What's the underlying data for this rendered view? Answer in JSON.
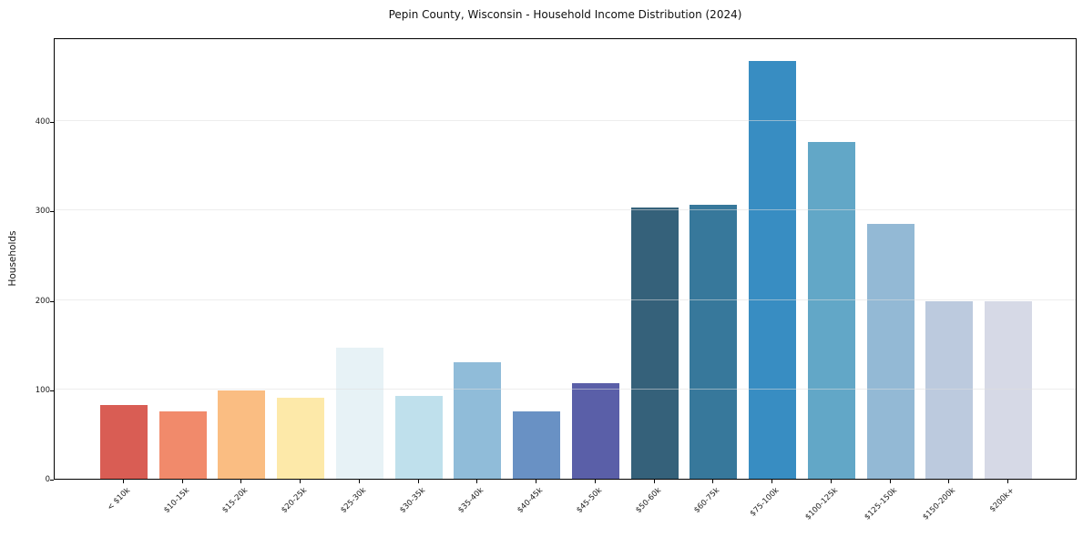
{
  "window": {
    "title": "Pepin County, Wisconsin - Household Income Distribution (2024)"
  },
  "chart_data": {
    "type": "bar",
    "title": "Pepin County, Wisconsin - Household Income Distribution (2024)",
    "xlabel": "",
    "ylabel": "Households",
    "categories": [
      "< $10k",
      "$10-15k",
      "$15-20k",
      "$20-25k",
      "$25-30k",
      "$30-35k",
      "$35-40k",
      "$40-45k",
      "$45-50k",
      "$50-60k",
      "$60-75k",
      "$75-100k",
      "$100-125k",
      "$125-150k",
      "$150-200k",
      "$200k+"
    ],
    "values": [
      83,
      75,
      99,
      91,
      147,
      93,
      130,
      75,
      107,
      304,
      307,
      468,
      377,
      285,
      199,
      199
    ],
    "bar_colors": [
      "#d95d54",
      "#f18a6b",
      "#fabd82",
      "#fde9a9",
      "#e7f2f6",
      "#bfe0ec",
      "#90bcd9",
      "#6991c4",
      "#5a5fa8",
      "#35617a",
      "#37789b",
      "#388dc2",
      "#62a7c7",
      "#93b9d5",
      "#bccade",
      "#d6d9e6"
    ],
    "yticks": [
      0,
      100,
      200,
      300,
      400
    ],
    "ylim": [
      0,
      494
    ],
    "grid": "horizontal",
    "legend": "none",
    "colors": {
      "background": "#ffffff",
      "spine": "#000000",
      "gridline": "#e3e3e3",
      "text": "#111111"
    }
  }
}
